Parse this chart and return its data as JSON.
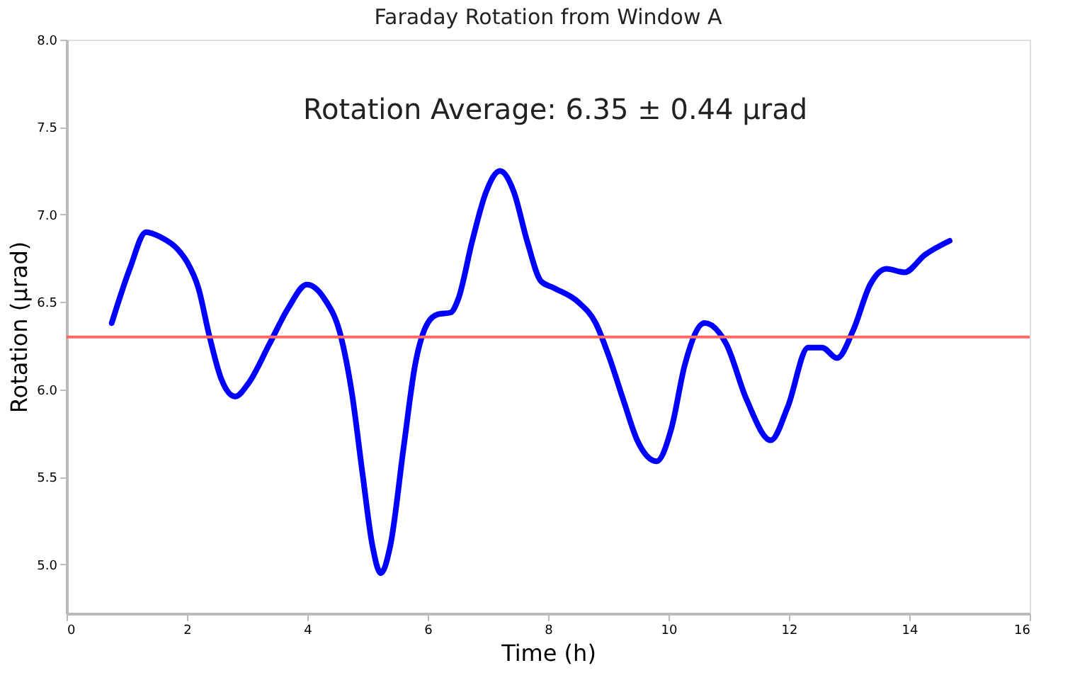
{
  "chart_data": {
    "type": "line",
    "title": "Faraday Rotation from Window A",
    "xlabel": "Time (h)",
    "ylabel": "Rotation (μrad)",
    "annotations": [
      "Rotation Average: 6.35 ± 0.44 μrad"
    ],
    "xlim": [
      0,
      16
    ],
    "xticks": [
      0,
      2,
      4,
      6,
      8,
      10,
      12,
      14,
      16
    ],
    "ylim": [
      4.72,
      8.0
    ],
    "yticks": [
      {
        "value": 5,
        "label": "5.0"
      },
      {
        "value": 5.5,
        "label": "5.5"
      },
      {
        "value": 6,
        "label": "6.0"
      },
      {
        "value": 6.5,
        "label": "6.5"
      },
      {
        "value": 7,
        "label": "7.0"
      },
      {
        "value": 7.5,
        "label": "7.5"
      },
      {
        "value": 8,
        "label": "8.0"
      }
    ],
    "grid": false,
    "marker": "none",
    "line_style": "solid",
    "ref_lines": [
      {
        "axis": "y",
        "value": 6.3,
        "color": "#ff6666"
      }
    ],
    "series": [
      {
        "color": "#0000ff",
        "x": [
          0.75,
          1.05,
          1.32,
          1.57,
          1.85,
          2.0,
          2.19,
          2.37,
          2.57,
          2.8,
          3.03,
          3.37,
          3.69,
          3.99,
          4.28,
          4.56,
          4.74,
          4.92,
          5.08,
          5.22,
          5.38,
          5.6,
          5.79,
          6.0,
          6.17,
          6.38,
          6.51,
          6.74,
          6.97,
          7.2,
          7.43,
          7.65,
          7.88,
          8.1,
          8.5,
          8.79,
          9.02,
          9.25,
          9.48,
          9.8,
          10.05,
          10.27,
          10.6,
          10.96,
          11.3,
          11.7,
          11.98,
          12.32,
          12.55,
          12.8,
          13.07,
          13.35,
          13.62,
          13.92,
          14.26,
          14.67
        ],
        "values": [
          6.38,
          6.69,
          6.9,
          6.87,
          6.8,
          6.73,
          6.58,
          6.31,
          6.06,
          5.96,
          6.04,
          6.26,
          6.47,
          6.6,
          6.52,
          6.3,
          5.98,
          5.51,
          5.11,
          4.95,
          5.11,
          5.67,
          6.14,
          6.38,
          6.43,
          6.44,
          6.52,
          6.85,
          7.13,
          7.25,
          7.13,
          6.85,
          6.62,
          6.58,
          6.5,
          6.38,
          6.18,
          5.94,
          5.71,
          5.59,
          5.78,
          6.14,
          6.38,
          6.26,
          5.94,
          5.71,
          5.9,
          6.24,
          6.24,
          6.18,
          6.34,
          6.6,
          6.69,
          6.67,
          6.77,
          6.85
        ]
      }
    ]
  }
}
